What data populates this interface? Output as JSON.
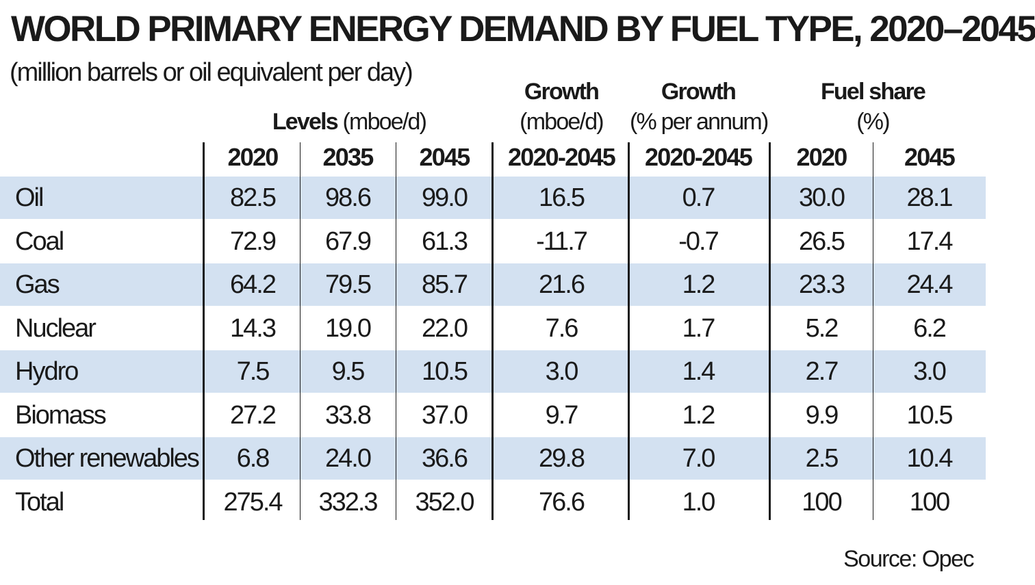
{
  "chart_data": {
    "type": "table",
    "title": "WORLD PRIMARY ENERGY DEMAND BY FUEL TYPE, 2020–2045",
    "subtitle": "(million barrels or oil equivalent per day)",
    "groups": {
      "levels": {
        "bold": "Levels",
        "rest": " (mboe/d)"
      },
      "growth_abs": {
        "line1": "Growth",
        "line2": "(mboe/d)"
      },
      "growth_pct": {
        "line1": "Growth",
        "line2": "(% per annum)"
      },
      "fuel_share": {
        "line1": "Fuel share",
        "line2": "(%)"
      }
    },
    "columns": [
      "2020",
      "2035",
      "2045",
      "2020-2045",
      "2020-2045",
      "2020",
      "2045"
    ],
    "rows": [
      {
        "label": "Oil",
        "values": [
          "82.5",
          "98.6",
          "99.0",
          "16.5",
          "0.7",
          "30.0",
          "28.1"
        ]
      },
      {
        "label": "Coal",
        "values": [
          "72.9",
          "67.9",
          "61.3",
          "-11.7",
          "-0.7",
          "26.5",
          "17.4"
        ]
      },
      {
        "label": "Gas",
        "values": [
          "64.2",
          "79.5",
          "85.7",
          "21.6",
          "1.2",
          "23.3",
          "24.4"
        ]
      },
      {
        "label": "Nuclear",
        "values": [
          "14.3",
          "19.0",
          "22.0",
          "7.6",
          "1.7",
          "5.2",
          "6.2"
        ]
      },
      {
        "label": "Hydro",
        "values": [
          "7.5",
          "9.5",
          "10.5",
          "3.0",
          "1.4",
          "2.7",
          "3.0"
        ]
      },
      {
        "label": "Biomass",
        "values": [
          "27.2",
          "33.8",
          "37.0",
          "9.7",
          "1.2",
          "9.9",
          "10.5"
        ]
      },
      {
        "label": "Other renewables",
        "values": [
          "6.8",
          "24.0",
          "36.6",
          "29.8",
          "7.0",
          "2.5",
          "10.4"
        ]
      },
      {
        "label": "Total",
        "values": [
          "275.4",
          "332.3",
          "352.0",
          "76.6",
          "1.0",
          "100",
          "100"
        ]
      }
    ],
    "source": "Source: Opec",
    "colors": {
      "shaded_row": "#d3e1f1",
      "text": "#1a1a1a"
    }
  }
}
